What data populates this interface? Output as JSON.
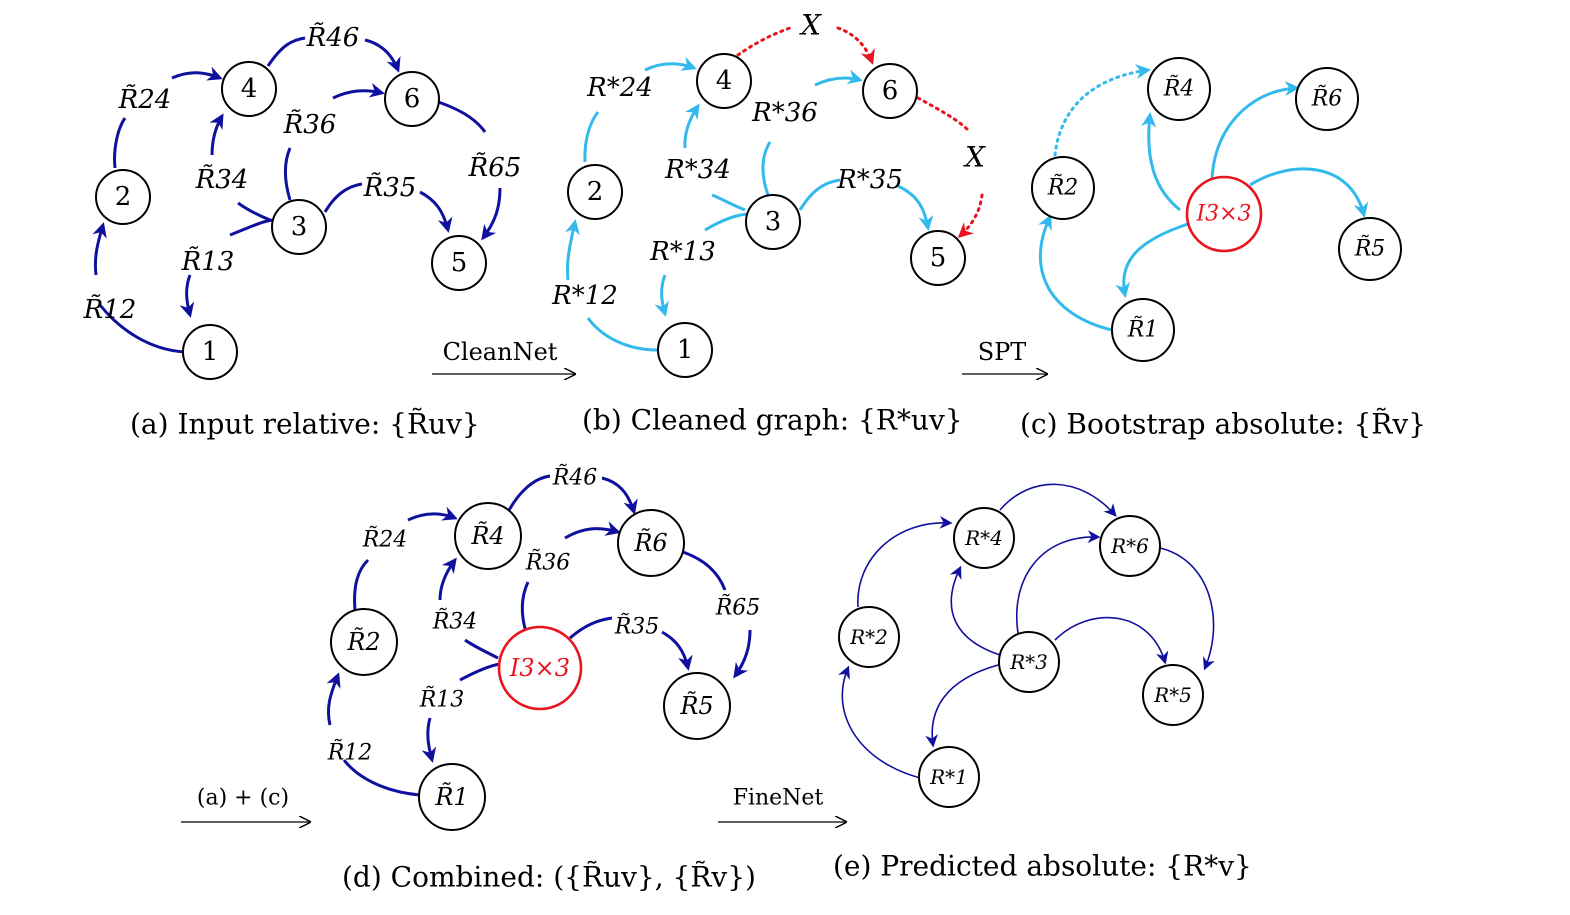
{
  "colors": {
    "dark_edge": "#10109e",
    "cyan_edge": "#33b9ec",
    "red": "#e8141e"
  },
  "panel_a": {
    "caption": "(a) Input relative: {R̃uv}",
    "nodes": [
      "1",
      "2",
      "3",
      "4",
      "5",
      "6"
    ],
    "edge_labels": [
      "R̃12",
      "R̃24",
      "R̃34",
      "R̃46",
      "R̃36",
      "R̃65",
      "R̃35",
      "R̃13"
    ]
  },
  "panel_b": {
    "caption": "(b) Cleaned graph: {R*uv}",
    "nodes": [
      "1",
      "2",
      "3",
      "4",
      "5",
      "6"
    ],
    "edge_labels": [
      "R*12",
      "R*24",
      "R*34",
      "R*36",
      "R*35",
      "R*13"
    ],
    "removed_mark": "X"
  },
  "panel_c": {
    "caption": "(c) Bootstrap absolute: {R̃v}",
    "nodes": [
      "R̃1",
      "R̃2",
      "R̃4",
      "R̃5",
      "R̃6"
    ],
    "identity": "I3×3"
  },
  "panel_d": {
    "caption": "(d) Combined: ({R̃uv}, {R̃v})",
    "nodes": [
      "R̃1",
      "R̃2",
      "R̃4",
      "R̃5",
      "R̃6"
    ],
    "identity": "I3×3",
    "edge_labels": [
      "R̃46",
      "R̃24",
      "R̃36",
      "R̃34",
      "R̃35",
      "R̃65",
      "R̃13",
      "R̃12"
    ]
  },
  "panel_e": {
    "caption": "(e) Predicted absolute: {R*v}",
    "nodes": [
      "R*1",
      "R*2",
      "R*3",
      "R*4",
      "R*5",
      "R*6"
    ]
  },
  "steps": {
    "cleannet": "CleanNet",
    "spt": "SPT",
    "combine": "(a) + (c)",
    "finenet": "FineNet"
  }
}
